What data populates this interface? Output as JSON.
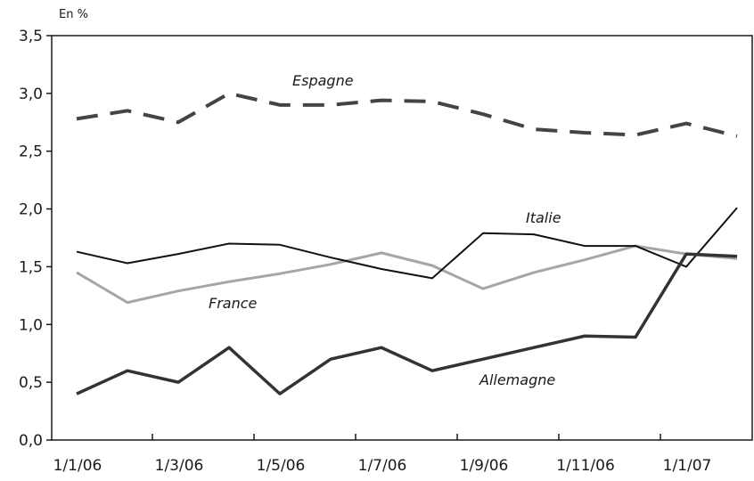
{
  "chart_data": {
    "type": "line",
    "unit_label": "En %",
    "ylim": [
      0,
      3.5
    ],
    "y_ticks": [
      "0,0",
      "0,5",
      "1,0",
      "1,5",
      "2,0",
      "2,5",
      "3,0",
      "3,5"
    ],
    "x_tick_labels": [
      "1/1/06",
      "1/3/06",
      "1/5/06",
      "1/7/06",
      "1/9/06",
      "1/11/06",
      "1/1/07"
    ],
    "x": [
      "2006-01",
      "2006-02",
      "2006-03",
      "2006-04",
      "2006-05",
      "2006-06",
      "2006-07",
      "2006-08",
      "2006-09",
      "2006-10",
      "2006-11",
      "2006-12",
      "2007-01",
      "2007-02"
    ],
    "grid": false,
    "series": [
      {
        "name": "Espagne",
        "values": [
          2.78,
          2.85,
          2.75,
          3.0,
          2.9,
          2.9,
          2.94,
          2.93,
          2.82,
          2.69,
          2.66,
          2.64,
          2.74,
          2.63
        ],
        "color": "#444444",
        "style": "dashed"
      },
      {
        "name": "Italie",
        "values": [
          1.63,
          1.53,
          1.61,
          1.7,
          1.69,
          1.58,
          1.48,
          1.4,
          1.79,
          1.78,
          1.68,
          1.68,
          1.5,
          2.01
        ],
        "color": "#111111",
        "style": "solid-thin"
      },
      {
        "name": "France",
        "values": [
          1.45,
          1.19,
          1.29,
          1.37,
          1.44,
          1.52,
          1.62,
          1.51,
          1.31,
          1.45,
          1.56,
          1.68,
          1.61,
          1.57
        ],
        "color": "#a6a6a6",
        "style": "solid"
      },
      {
        "name": "Allemagne",
        "values": [
          0.4,
          0.6,
          0.5,
          0.8,
          0.4,
          0.7,
          0.8,
          0.6,
          0.7,
          0.8,
          0.9,
          0.89,
          1.61,
          1.59
        ],
        "color": "#333333",
        "style": "solid-thick"
      }
    ]
  }
}
